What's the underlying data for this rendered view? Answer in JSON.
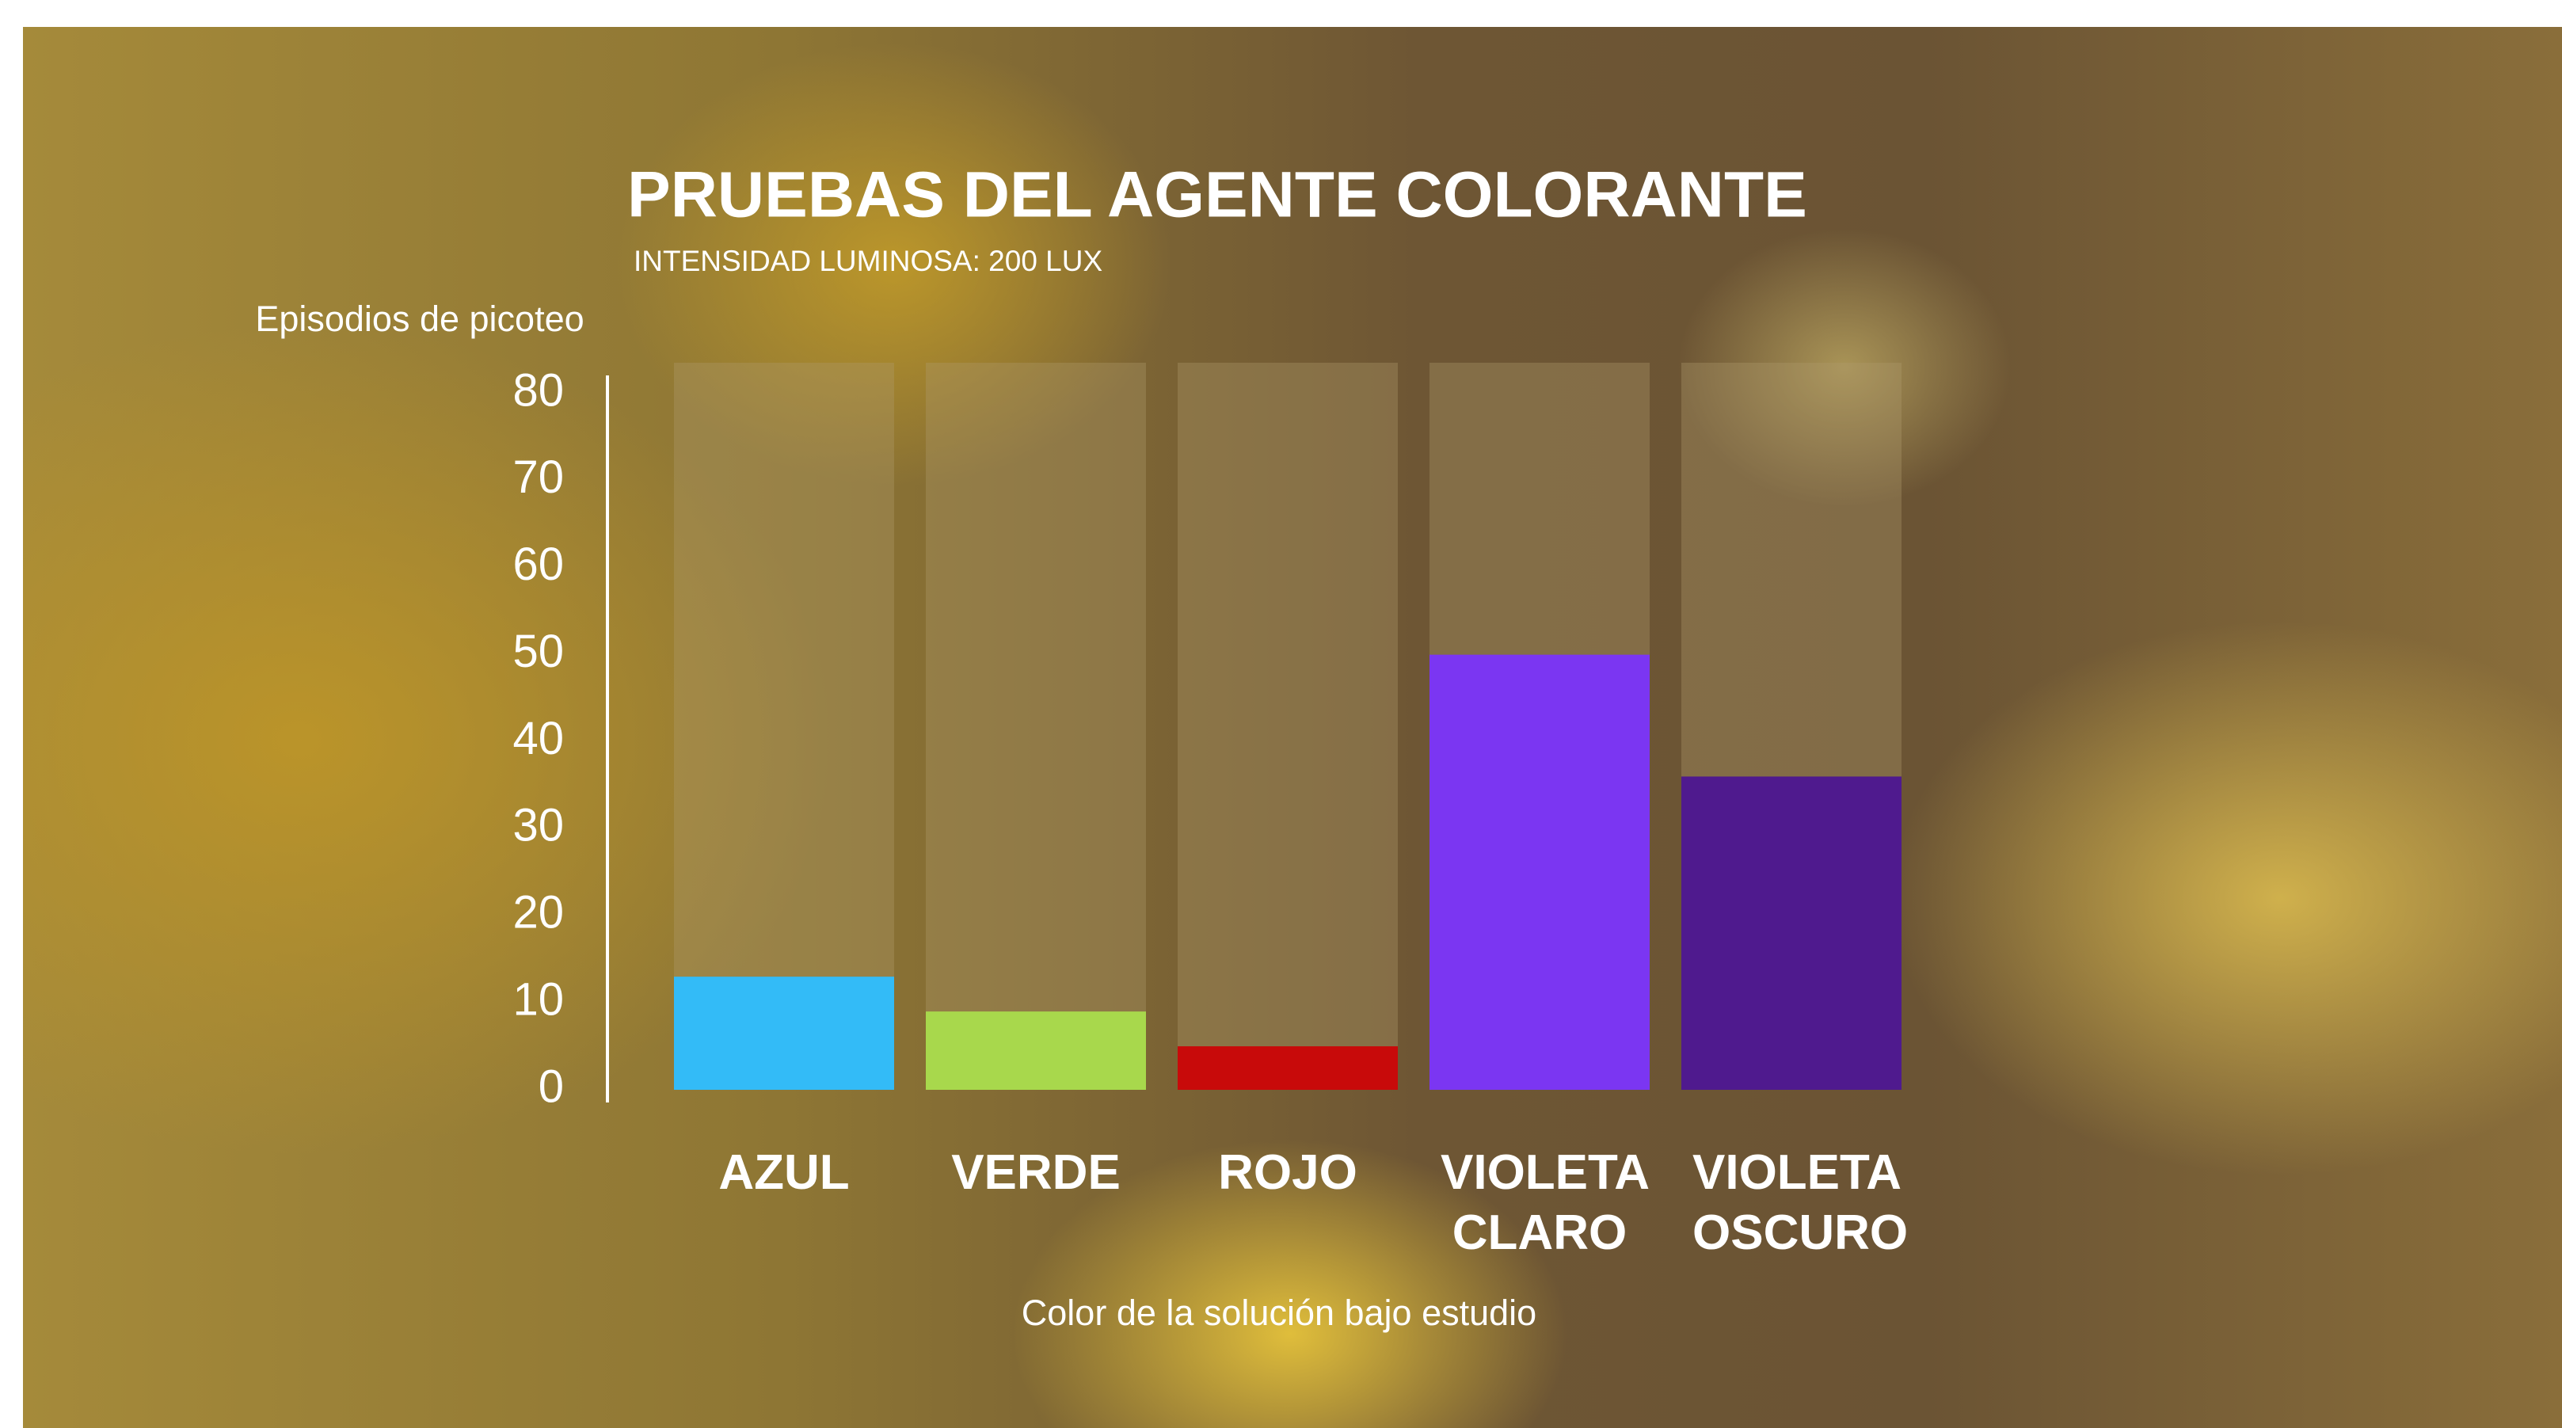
{
  "chart_data": {
    "type": "bar",
    "title": "PRUEBAS DEL AGENTE COLORANTE",
    "subtitle": "INTENSIDAD LUMINOSA: 200 LUX",
    "y_label": "Episodios de picoteo",
    "x_label": "Color de la solución bajo estudio",
    "categories": [
      "AZUL",
      "VERDE",
      "ROJO",
      "VIOLETA CLARO",
      "VIOLETA OSCURO"
    ],
    "values": [
      13,
      9,
      5,
      50,
      36
    ],
    "colors": [
      "#33bbf7",
      "#a8d84c",
      "#c80a0a",
      "#7b36f2",
      "#4f1a8e"
    ],
    "ylim": [
      0,
      80
    ],
    "yticks": [
      0,
      10,
      20,
      30,
      40,
      50,
      60,
      70,
      80
    ]
  }
}
